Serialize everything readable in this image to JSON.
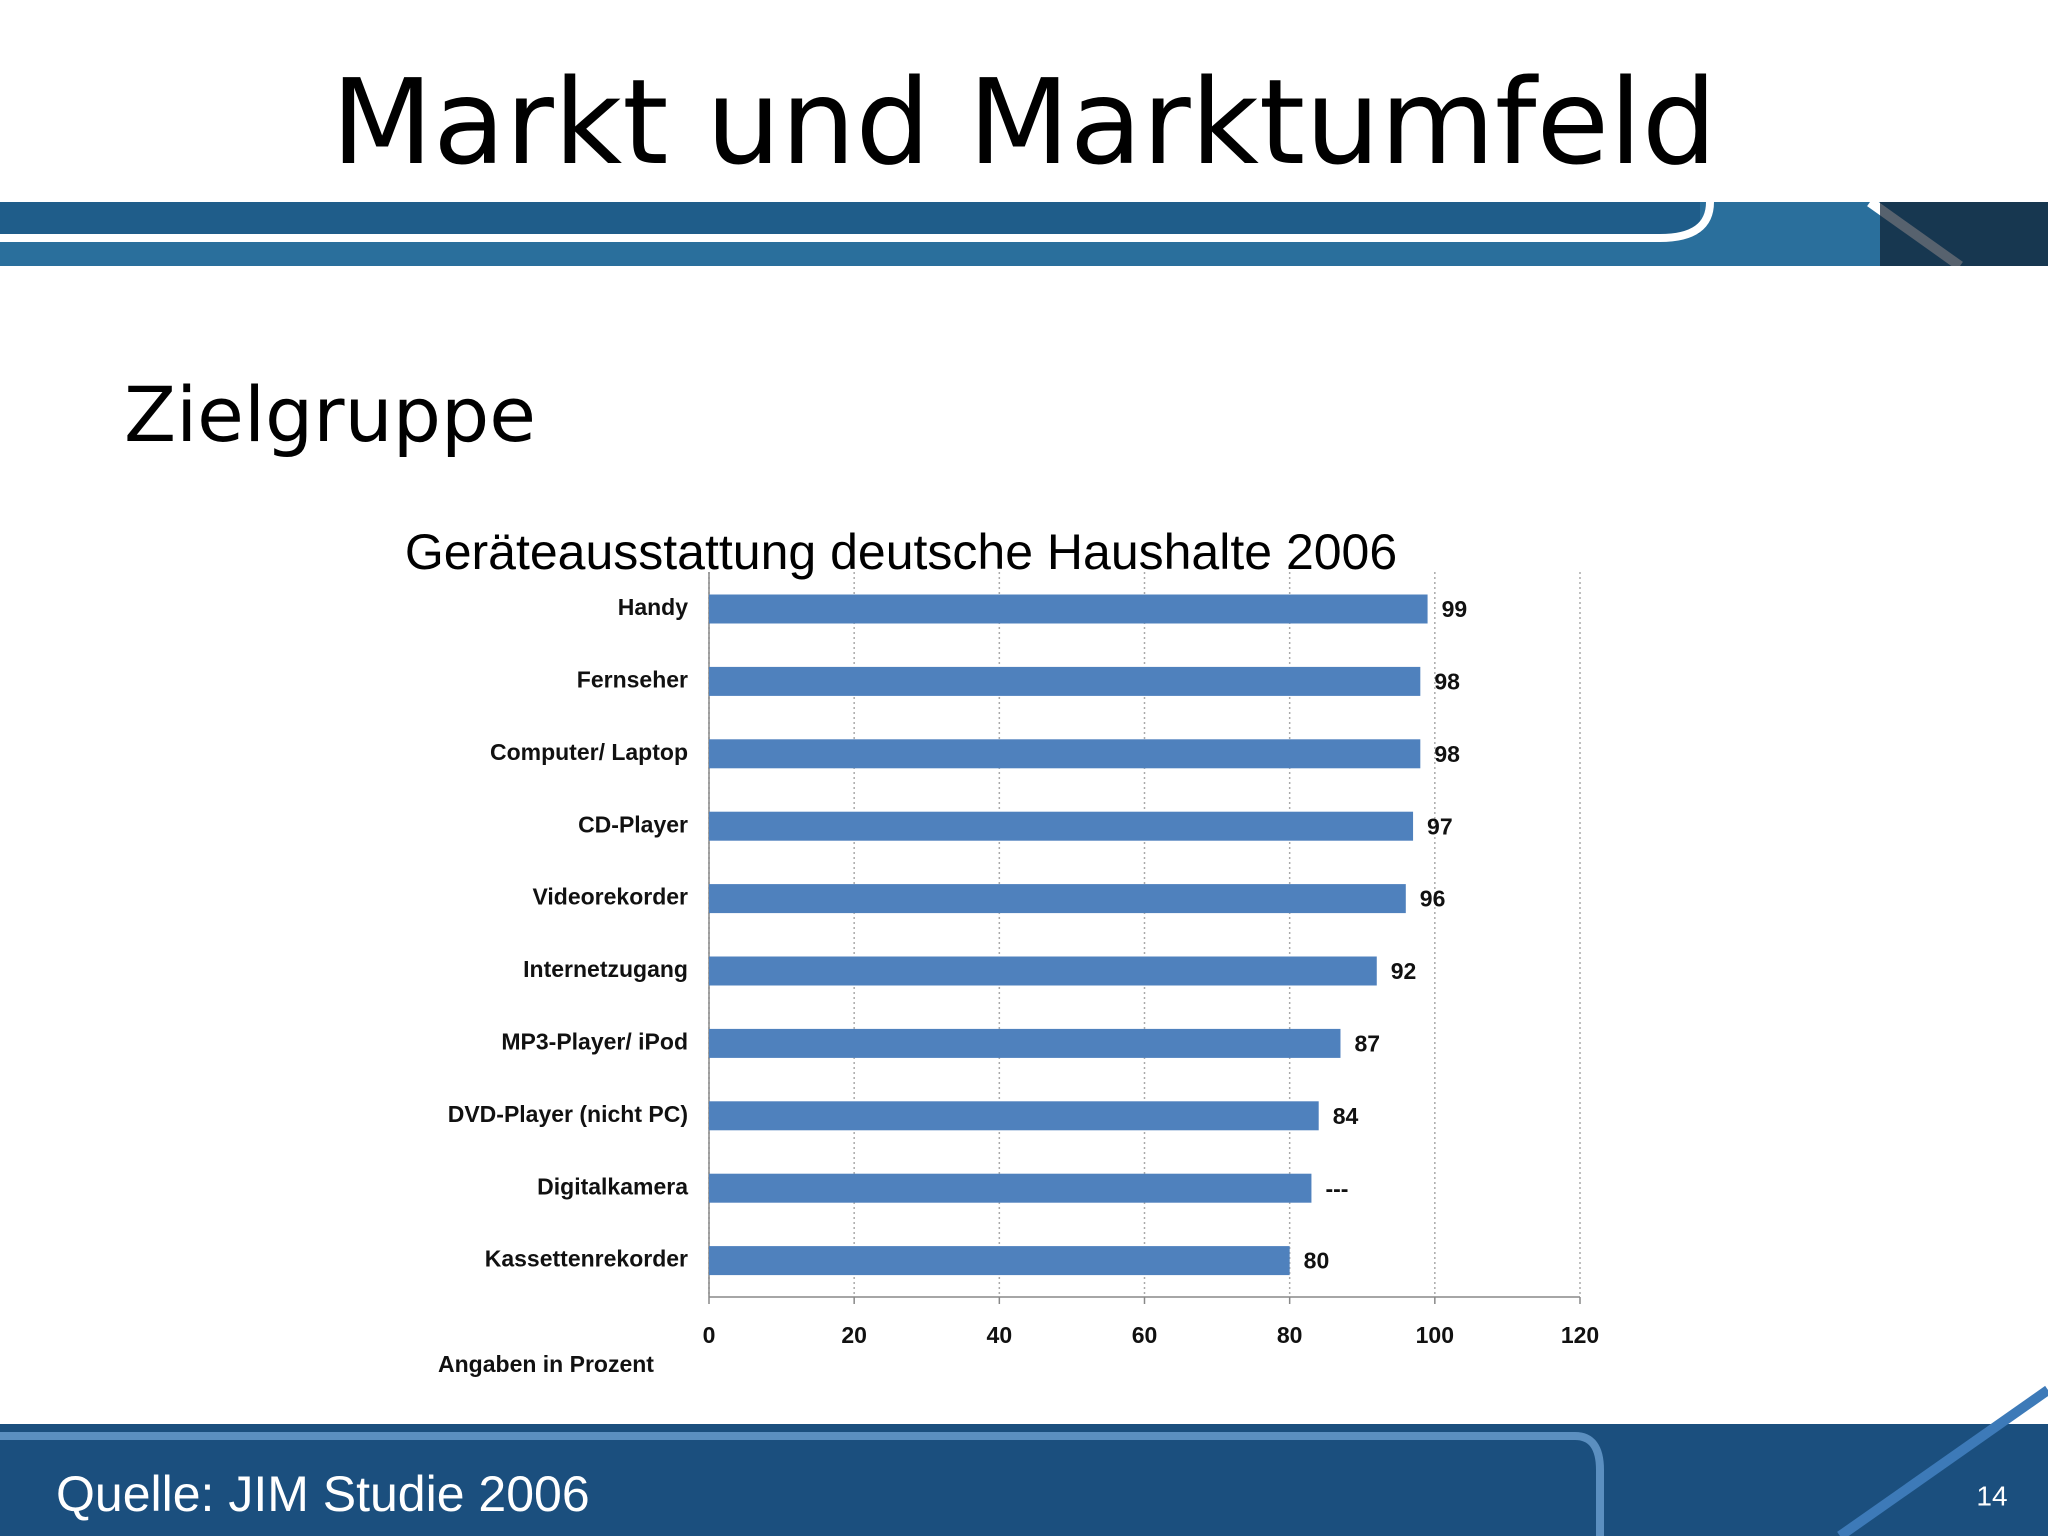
{
  "slide": {
    "title": "Markt und Marktumfeld",
    "subtitle": "Zielgruppe",
    "source": "Quelle: JIM Studie 2006",
    "page_number": "14"
  },
  "chart_data": {
    "type": "hbar",
    "title": "Geräteausstattung deutsche Haushalte 2006",
    "categories": [
      "Handy",
      "Fernseher",
      "Computer/ Laptop",
      "CD-Player",
      "Videorekorder",
      "Internetzugang",
      "MP3-Player/ iPod",
      "DVD-Player (nicht PC)",
      "Digitalkamera",
      "Kassettenrekorder"
    ],
    "values": [
      99,
      98,
      98,
      97,
      96,
      92,
      87,
      84,
      83,
      80
    ],
    "value_labels": [
      "99",
      "98",
      "98",
      "97",
      "96",
      "92",
      "87",
      "84",
      "---",
      "80"
    ],
    "color": "#4f81bd",
    "xlim": [
      0,
      120
    ],
    "xticks": [
      0,
      20,
      40,
      60,
      80,
      100,
      120
    ],
    "x_label": "Angaben in Prozent",
    "grid": true
  }
}
